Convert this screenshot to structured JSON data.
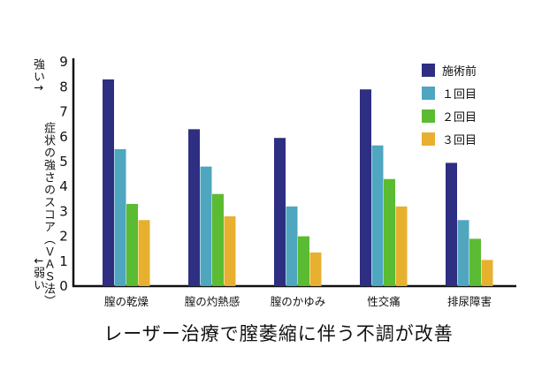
{
  "chart_data": {
    "type": "bar",
    "categories": [
      "膣の乾燥",
      "膣の灼熱感",
      "膣のかゆみ",
      "性交痛",
      "排尿障害"
    ],
    "series": [
      {
        "name": "施術前",
        "values": [
          8.3,
          6.3,
          5.95,
          7.9,
          4.95
        ]
      },
      {
        "name": "１回目",
        "values": [
          5.5,
          4.8,
          3.2,
          5.65,
          2.65
        ]
      },
      {
        "name": "２回目",
        "values": [
          3.3,
          3.7,
          2.0,
          4.3,
          1.9
        ]
      },
      {
        "name": "３回目",
        "values": [
          2.65,
          2.8,
          1.35,
          3.2,
          1.05
        ]
      }
    ],
    "colors": [
      "#2e2e82",
      "#4fa6bf",
      "#5bbb32",
      "#e8b02f"
    ],
    "ylim": [
      0,
      9
    ],
    "yticks": [
      "0",
      "1",
      "2",
      "3",
      "4",
      "5",
      "6",
      "7",
      "8",
      "9"
    ],
    "ylabel": "症状の強さのスコア（ＶＡＳ法）",
    "ylabel_top": "強い↑",
    "ylabel_bottom": "↓弱い",
    "caption": "レーザー治療で膣萎縮に伴う不調が改善"
  }
}
